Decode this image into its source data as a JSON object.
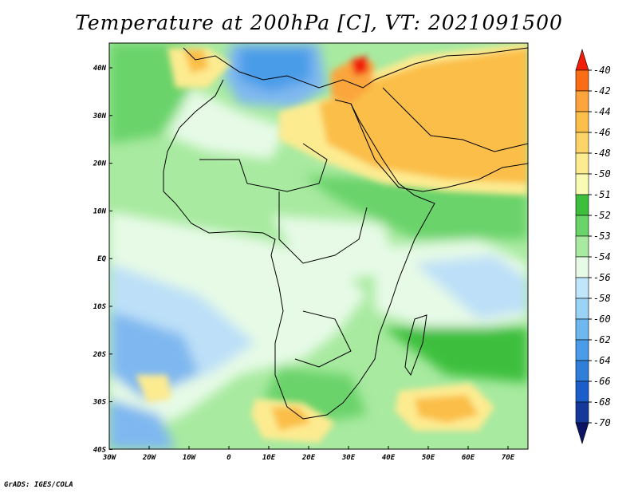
{
  "title": "Temperature at 200hPa [C], VT: 2021091500",
  "credit": "GrADS: IGES/COLA",
  "lat_labels": [
    "40N",
    "30N",
    "20N",
    "10N",
    "EQ",
    "10S",
    "20S",
    "30S",
    "40S"
  ],
  "lon_labels": [
    "30W",
    "20W",
    "10W",
    "0",
    "10E",
    "20E",
    "30E",
    "40E",
    "50E",
    "60E",
    "70E"
  ],
  "colorbar": {
    "levels": [
      "-40",
      "-42",
      "-44",
      "-46",
      "-48",
      "-50",
      "-51",
      "-52",
      "-53",
      "-54",
      "-56",
      "-58",
      "-60",
      "-62",
      "-64",
      "-66",
      "-68",
      "-70"
    ],
    "colors": [
      "#f01e0a",
      "#fb6d14",
      "#fba53c",
      "#fbbf4a",
      "#fcd468",
      "#fdeb90",
      "#f8fbb4",
      "#3dbf3d",
      "#6ad36a",
      "#a8eaa0",
      "#e6fae6",
      "#bfe6fa",
      "#9ad3f5",
      "#6fb8ef",
      "#4a9ce8",
      "#2f7fd9",
      "#1c5ec9",
      "#15399a",
      "#0c1463"
    ]
  },
  "map_colors": {
    "cold_blue": "#7fb8f0",
    "pale_blue": "#bde0f8",
    "very_pale": "#e6fae6",
    "light_green": "#a8eaa0",
    "green": "#6ad36a",
    "dark_green": "#3dbf3d",
    "yellow": "#fdeb90",
    "orange": "#fbbf4a",
    "dark_orange": "#fba53c"
  }
}
